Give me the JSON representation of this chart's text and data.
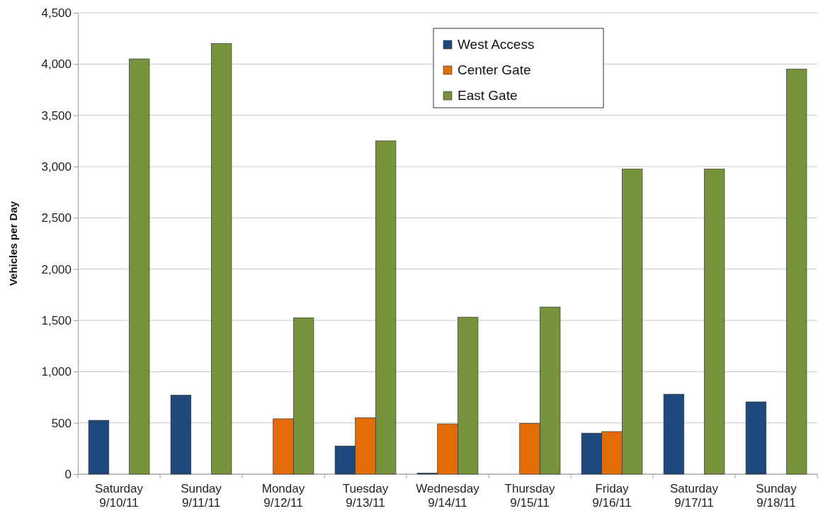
{
  "chart_data": {
    "type": "bar",
    "ylabel": "Vehicles per Day",
    "categories": [
      "Saturday\n9/10/11",
      "Sunday\n9/11/11",
      "Monday\n9/12/11",
      "Tuesday\n9/13/11",
      "Wednesday\n9/14/11",
      "Thursday\n9/15/11",
      "Friday\n9/16/11",
      "Saturday\n9/17/11",
      "Sunday\n9/18/11"
    ],
    "series": [
      {
        "name": "West Access",
        "color": "#1f497d",
        "values": [
          525,
          770,
          null,
          275,
          10,
          null,
          400,
          780,
          705
        ]
      },
      {
        "name": "Center Gate",
        "color": "#e36c09",
        "values": [
          null,
          null,
          540,
          550,
          490,
          495,
          415,
          null,
          null
        ]
      },
      {
        "name": "East Gate",
        "color": "#77933c",
        "values": [
          4050,
          4200,
          1525,
          3250,
          1530,
          1630,
          2975,
          2975,
          3950
        ]
      }
    ],
    "ylim": [
      0,
      4500
    ],
    "yticks": [
      {
        "value": 0,
        "label": "0"
      },
      {
        "value": 500,
        "label": "500"
      },
      {
        "value": 1000,
        "label": "1,000"
      },
      {
        "value": 1500,
        "label": "1,500"
      },
      {
        "value": 2000,
        "label": "2,000"
      },
      {
        "value": 2500,
        "label": "2,500"
      },
      {
        "value": 3000,
        "label": "3,000"
      },
      {
        "value": 3500,
        "label": "3,500"
      },
      {
        "value": 4000,
        "label": "4,000"
      },
      {
        "value": 4500,
        "label": "4,500"
      }
    ],
    "grid": "y",
    "legend": "top"
  }
}
